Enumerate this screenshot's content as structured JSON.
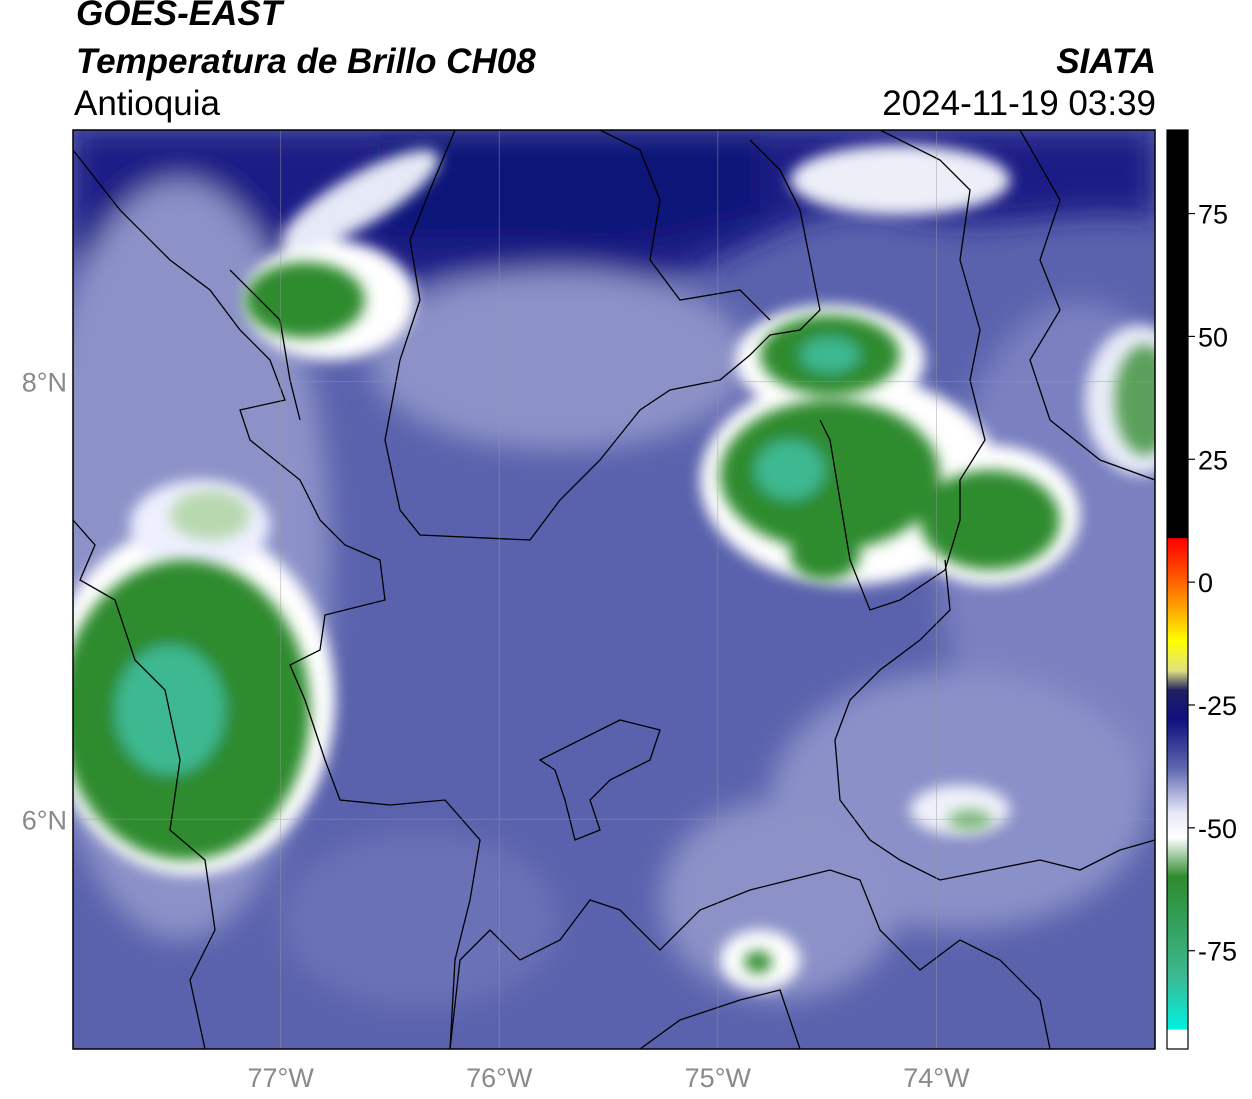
{
  "header": {
    "satellite": "GOES-EAST",
    "product": "Temperatura de Brillo CH08",
    "region": "Antioquia",
    "organization": "SIATA",
    "datetime": "2024-11-19 03:39"
  },
  "map": {
    "lon_range": [
      -77.95,
      -73.0
    ],
    "lat_range": [
      4.95,
      9.15
    ],
    "lon_ticks": [
      {
        "value": -77,
        "label": "77°W"
      },
      {
        "value": -76,
        "label": "76°W"
      },
      {
        "value": -75,
        "label": "75°W"
      },
      {
        "value": -74,
        "label": "74°W"
      }
    ],
    "lat_ticks": [
      {
        "value": 8,
        "label": "8°N"
      },
      {
        "value": 6,
        "label": "6°N"
      }
    ],
    "background_color": "#5a62ad",
    "cold_cloud_colors": [
      "#2e8b2e",
      "#3cb890"
    ]
  },
  "colorbar": {
    "range": [
      -95,
      92
    ],
    "ticks": [
      {
        "value": 75,
        "label": "75"
      },
      {
        "value": 50,
        "label": "50"
      },
      {
        "value": 25,
        "label": "25"
      },
      {
        "value": 0,
        "label": "0"
      },
      {
        "value": -25,
        "label": "-25"
      },
      {
        "value": -50,
        "label": "-50"
      },
      {
        "value": -75,
        "label": "-75"
      }
    ],
    "stops": [
      {
        "value": 92,
        "color": "#000000"
      },
      {
        "value": 9,
        "color": "#000000"
      },
      {
        "value": 8.9,
        "color": "#ff0000"
      },
      {
        "value": 3,
        "color": "#ff4000"
      },
      {
        "value": -5,
        "color": "#ffa000"
      },
      {
        "value": -12,
        "color": "#ffff00"
      },
      {
        "value": -18,
        "color": "#e0e080"
      },
      {
        "value": -22,
        "color": "#202060"
      },
      {
        "value": -28,
        "color": "#101080"
      },
      {
        "value": -38,
        "color": "#6068b0"
      },
      {
        "value": -47,
        "color": "#e8e8f8"
      },
      {
        "value": -52,
        "color": "#ffffff"
      },
      {
        "value": -60,
        "color": "#2e8b2e"
      },
      {
        "value": -80,
        "color": "#3cb890"
      },
      {
        "value": -91,
        "color": "#00f0e0"
      },
      {
        "value": -91.1,
        "color": "#ffffff"
      },
      {
        "value": -95,
        "color": "#ffffff"
      }
    ]
  }
}
